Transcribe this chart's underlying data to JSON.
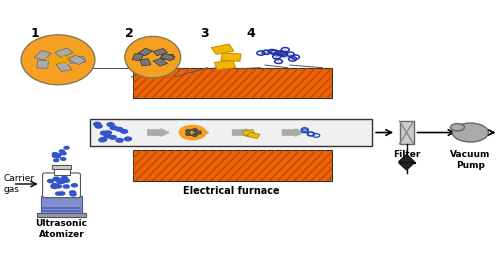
{
  "fig_width": 5.0,
  "fig_height": 2.64,
  "dpi": 100,
  "bg_color": "#ffffff",
  "furnace_color": "#E8650A",
  "hatch_color": "#cc4400",
  "tube_border": "#333333",
  "arrow_color": "#aaaaaa",
  "line_color": "#555555",
  "orange_circle_color": "#F5A020",
  "blue_dot_color": "#3355cc",
  "labels": {
    "carrier_gas": "Carrier\ngas",
    "ultrasonic": "Ultrasonic\nAtomizer",
    "electrical": "Electrical furnace",
    "filter": "Filter",
    "vacuum": "Vacuum\nPump"
  },
  "stage_labels": [
    "1",
    "2",
    "3",
    "4"
  ]
}
